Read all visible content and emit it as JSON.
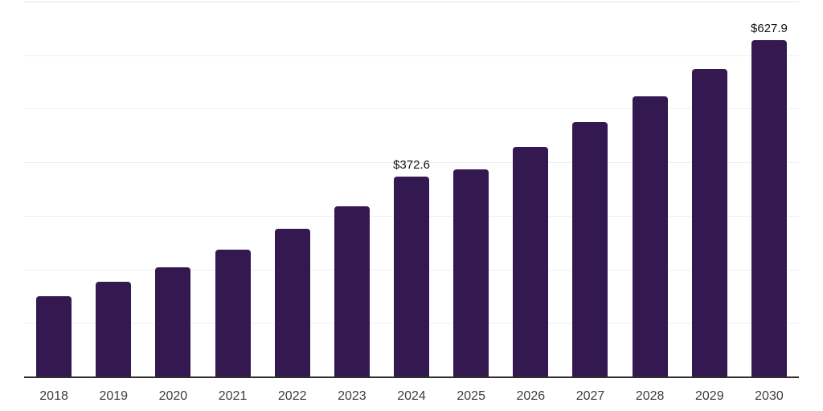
{
  "chart_data": {
    "type": "bar",
    "categories": [
      "2018",
      "2019",
      "2020",
      "2021",
      "2022",
      "2023",
      "2024",
      "2025",
      "2026",
      "2027",
      "2028",
      "2029",
      "2030"
    ],
    "values": [
      150.6,
      176.8,
      203.8,
      236.7,
      275.1,
      318.5,
      372.6,
      387.3,
      429.1,
      475.4,
      523.3,
      574.5,
      627.9
    ],
    "annotations": [
      {
        "category": "2024",
        "text": "$372.6"
      },
      {
        "category": "2030",
        "text": "$627.9"
      }
    ],
    "title": "",
    "xlabel": "",
    "ylabel": "",
    "ylim": [
      0,
      700
    ],
    "gridline_values": [
      100,
      200,
      300,
      400,
      500,
      600,
      700
    ],
    "legend": "none",
    "grid": "horizontal",
    "colors": {
      "bar": "#341951",
      "gridline": "#f0f0f0",
      "top_gridline": "#e5e5e5",
      "axis_line": "#2e2e2e",
      "tick_label": "#3d3d3d",
      "value_label": "#111111",
      "background": "#ffffff"
    }
  }
}
